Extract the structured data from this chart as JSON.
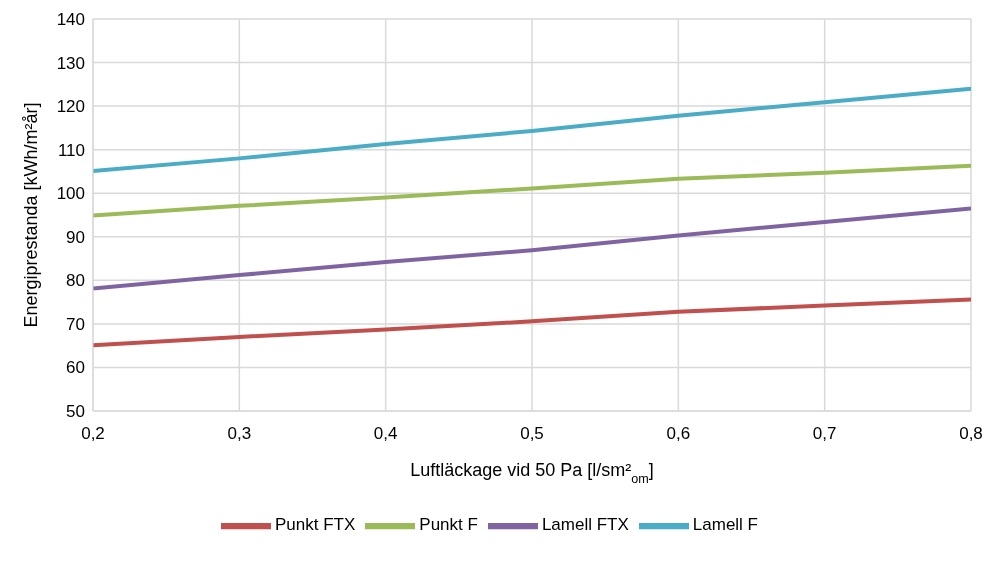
{
  "chart_data": {
    "type": "line",
    "xlabel": "Luftläckage vid 50 Pa [l/sm²$_{om}$]",
    "ylabel": "Energiprestanda [kWh/m²år]",
    "x": [
      0.2,
      0.3,
      0.4,
      0.5,
      0.6,
      0.7,
      0.8
    ],
    "series": [
      {
        "name": "Punkt FTX",
        "color": "#c0504d",
        "values": [
          65.1,
          67.0,
          68.7,
          70.6,
          72.8,
          74.2,
          75.6
        ]
      },
      {
        "name": "Punkt F",
        "color": "#9bbb59",
        "values": [
          94.9,
          97.1,
          99.0,
          101.1,
          103.3,
          104.7,
          106.3
        ]
      },
      {
        "name": "Lamell FTX",
        "color": "#8064a2",
        "values": [
          78.1,
          81.2,
          84.2,
          86.9,
          90.3,
          93.4,
          96.5
        ]
      },
      {
        "name": "Lamell F",
        "color": "#4bacc6",
        "values": [
          105.1,
          108.0,
          111.3,
          114.3,
          117.8,
          120.9,
          124.0
        ]
      }
    ],
    "xlim": [
      0.2,
      0.8
    ],
    "xticks": [
      {
        "value": 0.2,
        "label": "0,2"
      },
      {
        "value": 0.3,
        "label": "0,3"
      },
      {
        "value": 0.4,
        "label": "0,4"
      },
      {
        "value": 0.5,
        "label": "0,5"
      },
      {
        "value": 0.6,
        "label": "0,6"
      },
      {
        "value": 0.7,
        "label": "0,7"
      },
      {
        "value": 0.8,
        "label": "0,8"
      }
    ],
    "ylim": [
      50,
      140
    ],
    "yticks": [
      50,
      60,
      70,
      80,
      90,
      100,
      110,
      120,
      130,
      140
    ],
    "grid": true,
    "legend": "bottom",
    "marker": "none",
    "line_style": "solid"
  }
}
